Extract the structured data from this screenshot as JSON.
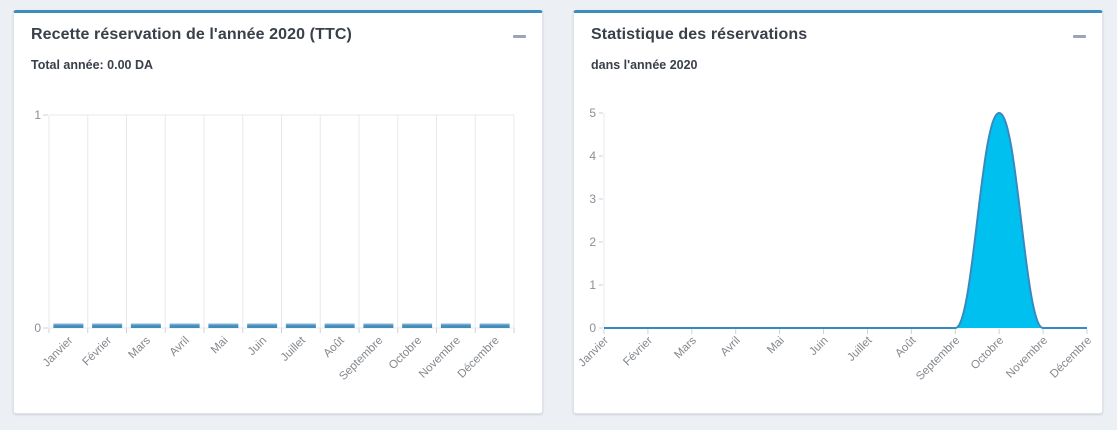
{
  "page": {
    "background": "#ecf0f4",
    "accent_color": "#3c8dbc"
  },
  "panels": [
    {
      "title": "Recette réservation de l'année 2020 (TTC)",
      "subtitle": "Total année: 0.00 DA",
      "collapse_icon": "minus"
    },
    {
      "title": "Statistique des réservations",
      "subtitle": "dans l'année 2020",
      "collapse_icon": "minus"
    }
  ],
  "chart_data": [
    {
      "type": "bar",
      "title": "Recette réservation de l'année 2020 (TTC)",
      "subtitle": "Total année: 0.00 DA",
      "categories": [
        "Janvier",
        "Février",
        "Mars",
        "Avril",
        "Mai",
        "Juin",
        "Juillet",
        "Août",
        "Septembre",
        "Octobre",
        "Novembre",
        "Décembre"
      ],
      "values": [
        0,
        0,
        0,
        0,
        0,
        0,
        0,
        0,
        0,
        0,
        0,
        0
      ],
      "ylim": [
        0,
        1
      ],
      "yticks": [
        0,
        1
      ],
      "xlabel": "",
      "ylabel": "",
      "grid": "vertical",
      "bar_color": "#3c8dbc",
      "bar_color_light": "#a9cbe2",
      "gridline_color": "#e6e9ec",
      "tick_color": "#cdd2d7",
      "legend": "none"
    },
    {
      "type": "area",
      "title": "Statistique des réservations",
      "subtitle": "dans l'année 2020",
      "categories": [
        "Janvier",
        "Février",
        "Mars",
        "Avril",
        "Mai",
        "Juin",
        "Juillet",
        "Août",
        "Septembre",
        "Octobre",
        "Novembre",
        "Décembre"
      ],
      "values": [
        0,
        0,
        0,
        0,
        0,
        0,
        0,
        0,
        0,
        5,
        0,
        0
      ],
      "ylim": [
        0,
        5
      ],
      "yticks": [
        0,
        1,
        2,
        3,
        4,
        5
      ],
      "xlabel": "",
      "ylabel": "",
      "grid": "off",
      "smooth": true,
      "fill_color": "#00c0ef",
      "line_color": "#3989c1",
      "axis_color": "#e6e9ec",
      "tick_color": "#cdd2d7",
      "legend": "none"
    }
  ]
}
